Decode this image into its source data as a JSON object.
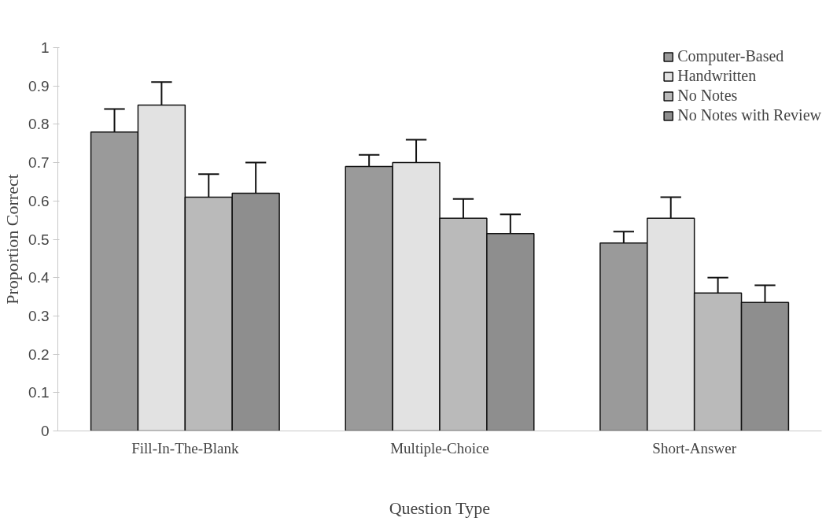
{
  "chart_data": {
    "type": "bar",
    "xlabel": "Question Type",
    "ylabel": "Proportion Correct",
    "categories": [
      "Fill-In-The-Blank",
      "Multiple-Choice",
      "Short-Answer"
    ],
    "series": [
      {
        "name": "Computer-Based",
        "color": "#9a9a9a",
        "values": [
          0.78,
          0.69,
          0.49
        ],
        "errors": [
          [
            0.78,
            0.84
          ],
          [
            0.69,
            0.72
          ],
          [
            0.49,
            0.52
          ]
        ]
      },
      {
        "name": "Handwritten",
        "color": "#e2e2e2",
        "values": [
          0.85,
          0.7,
          0.555
        ],
        "errors": [
          [
            0.85,
            0.91
          ],
          [
            0.7,
            0.76
          ],
          [
            0.555,
            0.61
          ]
        ]
      },
      {
        "name": "No Notes",
        "color": "#bababa",
        "values": [
          0.61,
          0.555,
          0.36
        ],
        "errors": [
          [
            0.61,
            0.67
          ],
          [
            0.555,
            0.605
          ],
          [
            0.36,
            0.4
          ]
        ]
      },
      {
        "name": "No Notes with Review",
        "color": "#8e8e8e",
        "values": [
          0.62,
          0.515,
          0.335
        ],
        "errors": [
          [
            0.62,
            0.7
          ],
          [
            0.515,
            0.565
          ],
          [
            0.335,
            0.38
          ]
        ]
      }
    ],
    "ylim": [
      0,
      1
    ],
    "yticks": [
      0,
      0.1,
      0.2,
      0.3,
      0.4,
      0.5,
      0.6,
      0.7,
      0.8,
      0.9,
      1
    ],
    "grid": false,
    "legend": "top right"
  }
}
